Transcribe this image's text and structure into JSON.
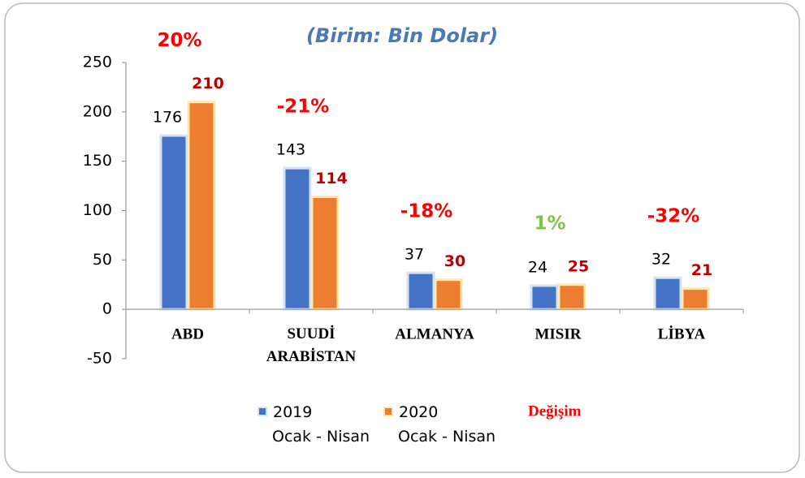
{
  "chart_data": {
    "type": "bar",
    "title": "(Birim: Bin Dolar)",
    "categories": [
      "ABD",
      "SUUDİ ARABİSTAN",
      "ALMANYA",
      "MISIR",
      "LİBYA"
    ],
    "series": [
      {
        "name": "2019 Ocak - Nisan",
        "color": "#4472c4",
        "values": [
          176,
          143,
          37,
          24,
          32
        ]
      },
      {
        "name": "2020 Ocak - Nisan",
        "color": "#ed7d31",
        "values": [
          210,
          114,
          30,
          25,
          21
        ]
      }
    ],
    "change": {
      "name": "Değişim",
      "color": "#ff0000",
      "values": [
        20,
        -21,
        -18,
        1,
        -32
      ],
      "value_labels": [
        "20%",
        "-21%",
        "-18%",
        "1%",
        "-32%"
      ],
      "colors": [
        "#ff0000",
        "#ff0000",
        "#ff0000",
        "#7dc447",
        "#ff0000"
      ]
    },
    "ylim": [
      -50,
      250
    ],
    "yticks": [
      -50,
      0,
      50,
      100,
      150,
      200,
      250
    ],
    "grid": false
  }
}
